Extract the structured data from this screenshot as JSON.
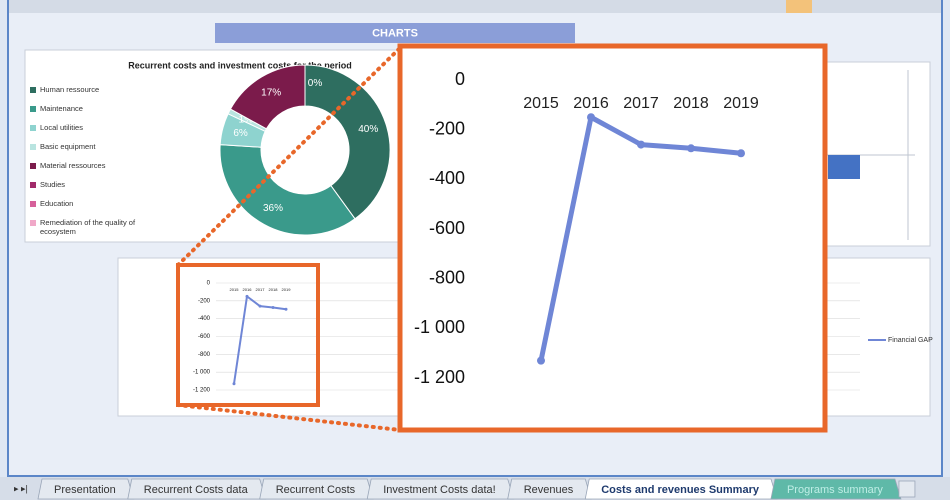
{
  "sheet": {
    "banner": "CHARTS",
    "tabs": [
      "Presentation",
      "Recurrent Costs data",
      "Recurrent Costs",
      "Investment Costs data!",
      "Revenues",
      "Costs and revenues Summary",
      "Programs summary"
    ],
    "active_tab": 5
  },
  "chart_data": [
    {
      "type": "donut",
      "title": "Recurrent costs and investment costs for the period",
      "categories": [
        "Human ressource",
        "Maintenance",
        "Local utilities",
        "Basic equipment",
        "Material ressources",
        "Studies",
        "Education",
        "Remediation of the quality of ecosystem"
      ],
      "values": [
        40,
        36,
        6,
        1,
        17,
        0,
        0,
        0
      ],
      "value_labels": [
        "40%",
        "36%",
        "6%",
        "1%",
        "17%",
        "0%",
        null,
        null
      ],
      "colors": [
        "#2e6e60",
        "#3a9a8b",
        "#8ed3cf",
        "#b9e4e0",
        "#7b1b4b",
        "#a12b6a",
        "#d6609a",
        "#f0a8c8"
      ]
    },
    {
      "type": "line",
      "categories": [
        "2015",
        "2016",
        "2017",
        "2018",
        "2019"
      ],
      "series": [
        {
          "name": "Financial GAP",
          "color": "#6f86d6",
          "values": [
            -1130,
            -150,
            -260,
            -275,
            -295
          ]
        }
      ],
      "ylim": [
        -1200,
        0
      ],
      "yticks": [
        0,
        -200,
        -400,
        -600,
        -800,
        {
          "value": -1000,
          "label": "-1 000"
        },
        {
          "value": -1200,
          "label": "-1 200"
        }
      ],
      "grid": true
    }
  ]
}
